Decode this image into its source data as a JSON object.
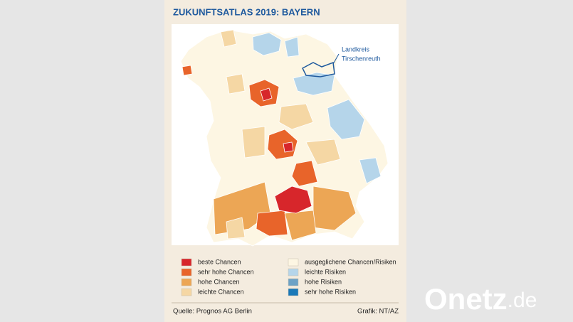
{
  "title": "ZUKUNFTSATLAS 2019: BAYERN",
  "annotation": [
    "Landkreis",
    "Tirschenreuth"
  ],
  "legend": [
    {
      "label": "beste Chancen",
      "color": "#d7262b"
    },
    {
      "label": "sehr hohe Chancen",
      "color": "#e8642a"
    },
    {
      "label": "hohe Chancen",
      "color": "#eca655"
    },
    {
      "label": "leichte Chancen",
      "color": "#f5d7a4"
    },
    {
      "label": "ausgeglichene Chancen/Risiken",
      "color": "#fdf6e3"
    },
    {
      "label": "leichte Risiken",
      "color": "#b5d5ea"
    },
    {
      "label": "hohe Risiken",
      "color": "#6da2c6"
    },
    {
      "label": "sehr hohe Risiken",
      "color": "#1a79b8"
    }
  ],
  "source": "Quelle: Prognos AG Berlin",
  "credit": "Grafik: NT/AZ",
  "watermark": {
    "name": "Onetz",
    "suffix": ".de"
  }
}
